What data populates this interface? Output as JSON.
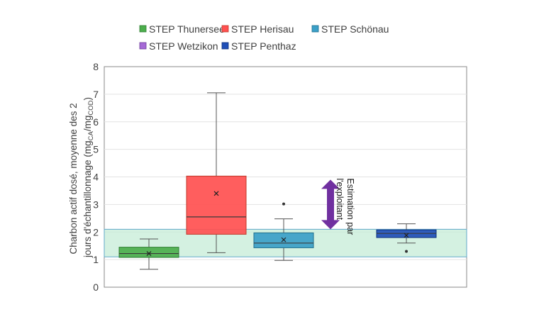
{
  "chart_data": {
    "type": "boxplot",
    "ylabel": {
      "line1": "Charbon actif dosé, moyenne des 2",
      "line2_prefix": "jours d'échantillonnage (mg",
      "sub_ca": "CA",
      "slash": "/mg",
      "sub_cod": "COD",
      "close": ")"
    },
    "ylim": [
      0,
      8
    ],
    "yticks": [
      0,
      1,
      2,
      3,
      4,
      5,
      6,
      7,
      8
    ],
    "grid": true,
    "legend_position": "top",
    "target_band": {
      "min": 1.1,
      "max": 2.1,
      "color": "#c5ecd7"
    },
    "annotation": {
      "lines": [
        "Estimation par",
        "l'exploitant"
      ],
      "arrow_from": 2.1,
      "arrow_to": 3.9,
      "color": "#7030a0"
    },
    "series": [
      {
        "name": "STEP Thunersee",
        "color": "#4cae4c",
        "border": "#2e7d32",
        "whisker_low": 0.65,
        "q1": 1.08,
        "median": 1.22,
        "q3": 1.45,
        "whisker_high": 1.75,
        "mean": 1.22,
        "outliers": []
      },
      {
        "name": "STEP Herisau",
        "color": "#ff5050",
        "border": "#c0392b",
        "whisker_low": 1.25,
        "q1": 1.92,
        "median": 2.55,
        "q3": 4.03,
        "whisker_high": 7.05,
        "mean": 3.4,
        "outliers": []
      },
      {
        "name": "STEP Schönau",
        "color": "#3ba0c8",
        "border": "#1f6f8e",
        "whisker_low": 0.97,
        "q1": 1.43,
        "median": 1.6,
        "q3": 1.97,
        "whisker_high": 2.48,
        "mean": 1.72,
        "outliers": [
          3.02
        ]
      },
      {
        "name": "STEP Wetzikon",
        "color": "#a569d6",
        "border": "#6b3d99",
        "whisker_low": null,
        "q1": null,
        "median": null,
        "q3": null,
        "whisker_high": null,
        "mean": null,
        "outliers": []
      },
      {
        "name": "STEP Penthaz",
        "color": "#1f4fb8",
        "border": "#0b2f7a",
        "whisker_low": 1.6,
        "q1": 1.8,
        "median": 1.95,
        "q3": 2.08,
        "whisker_high": 2.3,
        "mean": 1.88,
        "outliers": [
          1.3
        ]
      }
    ]
  }
}
